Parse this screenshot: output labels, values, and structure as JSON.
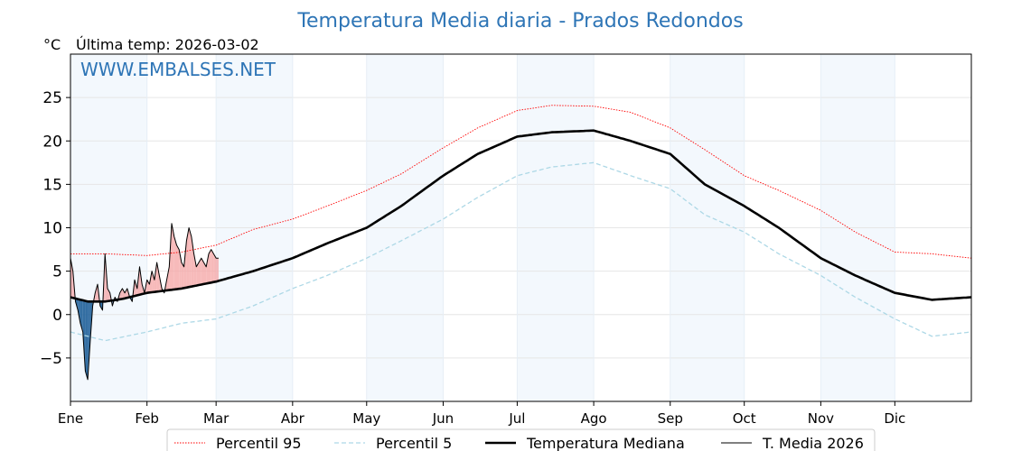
{
  "chart_data": {
    "type": "line",
    "title": "Temperatura Media diaria - Prados Redondos",
    "unit": "°C",
    "subtitle": "Última temp: 2026-03-02",
    "watermark": "WWW.EMBALSES.NET",
    "x_tick_labels": [
      "Ene",
      "Feb",
      "Mar",
      "Abr",
      "May",
      "Jun",
      "Jul",
      "Ago",
      "Sep",
      "Oct",
      "Nov",
      "Dic"
    ],
    "x_tick_days": [
      1,
      32,
      60,
      91,
      121,
      152,
      182,
      213,
      244,
      274,
      305,
      335
    ],
    "y_ticks": [
      -5,
      0,
      5,
      10,
      15,
      20,
      25
    ],
    "y_tick_labels": [
      "−5",
      "0",
      "5",
      "10",
      "15",
      "20",
      "25"
    ],
    "xlim": [
      1,
      366
    ],
    "ylim": [
      -10,
      30
    ],
    "series": [
      {
        "name": "Percentil 95",
        "color": "#ff0000",
        "style": "dotted",
        "x": [
          1,
          15,
          32,
          46,
          60,
          75,
          91,
          105,
          121,
          135,
          152,
          166,
          182,
          196,
          213,
          228,
          244,
          258,
          274,
          288,
          305,
          319,
          335,
          350,
          366
        ],
        "y": [
          7.0,
          7.0,
          6.8,
          7.2,
          8.0,
          9.8,
          11.0,
          12.5,
          14.3,
          16.2,
          19.2,
          21.5,
          23.5,
          24.1,
          24.0,
          23.3,
          21.5,
          19.0,
          16.0,
          14.3,
          12.0,
          9.5,
          7.2,
          7.0,
          6.5
        ]
      },
      {
        "name": "Percentil 5",
        "color": "#add8e6",
        "style": "dashed",
        "x": [
          1,
          15,
          32,
          46,
          60,
          75,
          91,
          105,
          121,
          135,
          152,
          166,
          182,
          196,
          213,
          228,
          244,
          258,
          274,
          288,
          305,
          319,
          335,
          350,
          366
        ],
        "y": [
          -2.0,
          -3.0,
          -2.0,
          -1.0,
          -0.5,
          1.0,
          3.0,
          4.5,
          6.5,
          8.5,
          11.0,
          13.5,
          16.0,
          17.0,
          17.5,
          16.0,
          14.5,
          11.5,
          9.5,
          7.0,
          4.5,
          2.0,
          -0.5,
          -2.5,
          -2.0
        ]
      },
      {
        "name": "Temperatura Mediana",
        "color": "#000000",
        "style": "solid-thick",
        "x": [
          1,
          8,
          15,
          22,
          32,
          46,
          60,
          75,
          91,
          105,
          121,
          135,
          152,
          166,
          182,
          196,
          213,
          228,
          244,
          258,
          274,
          288,
          305,
          319,
          335,
          350,
          366
        ],
        "y": [
          2.0,
          1.5,
          1.5,
          1.8,
          2.5,
          3.0,
          3.8,
          5.0,
          6.5,
          8.2,
          10.0,
          12.5,
          16.0,
          18.5,
          20.5,
          21.0,
          21.2,
          20.0,
          18.5,
          15.0,
          12.5,
          10.0,
          6.5,
          4.5,
          2.5,
          1.7,
          2.0
        ]
      },
      {
        "name": "T. Media 2026",
        "color": "#000000",
        "style": "solid-thin",
        "x": [
          1,
          2,
          3,
          4,
          5,
          6,
          7,
          8,
          9,
          10,
          11,
          12,
          13,
          14,
          15,
          16,
          17,
          18,
          19,
          20,
          21,
          22,
          23,
          24,
          25,
          26,
          27,
          28,
          29,
          30,
          31,
          32,
          33,
          34,
          35,
          36,
          37,
          38,
          39,
          40,
          41,
          42,
          43,
          44,
          45,
          46,
          47,
          48,
          49,
          50,
          51,
          52,
          53,
          54,
          55,
          56,
          57,
          58,
          59,
          60,
          61
        ],
        "y": [
          6.5,
          5.0,
          1.5,
          0.5,
          -1.0,
          -2.0,
          -6.5,
          -7.5,
          -3.0,
          1.0,
          2.5,
          3.5,
          1.0,
          0.5,
          7.0,
          3.0,
          2.5,
          1.0,
          2.0,
          1.5,
          2.5,
          3.0,
          2.5,
          3.0,
          2.0,
          1.5,
          4.0,
          3.0,
          5.5,
          3.5,
          2.5,
          4.0,
          3.5,
          5.0,
          4.0,
          6.0,
          4.5,
          3.0,
          2.5,
          4.0,
          5.5,
          10.5,
          9.0,
          8.0,
          7.5,
          6.0,
          5.5,
          8.5,
          10.0,
          9.0,
          7.0,
          5.5,
          6.0,
          6.5,
          6.0,
          5.5,
          7.0,
          7.5,
          7.0,
          6.5,
          6.5
        ]
      }
    ],
    "legend": {
      "placement": "bottom-center"
    },
    "grid": true
  }
}
